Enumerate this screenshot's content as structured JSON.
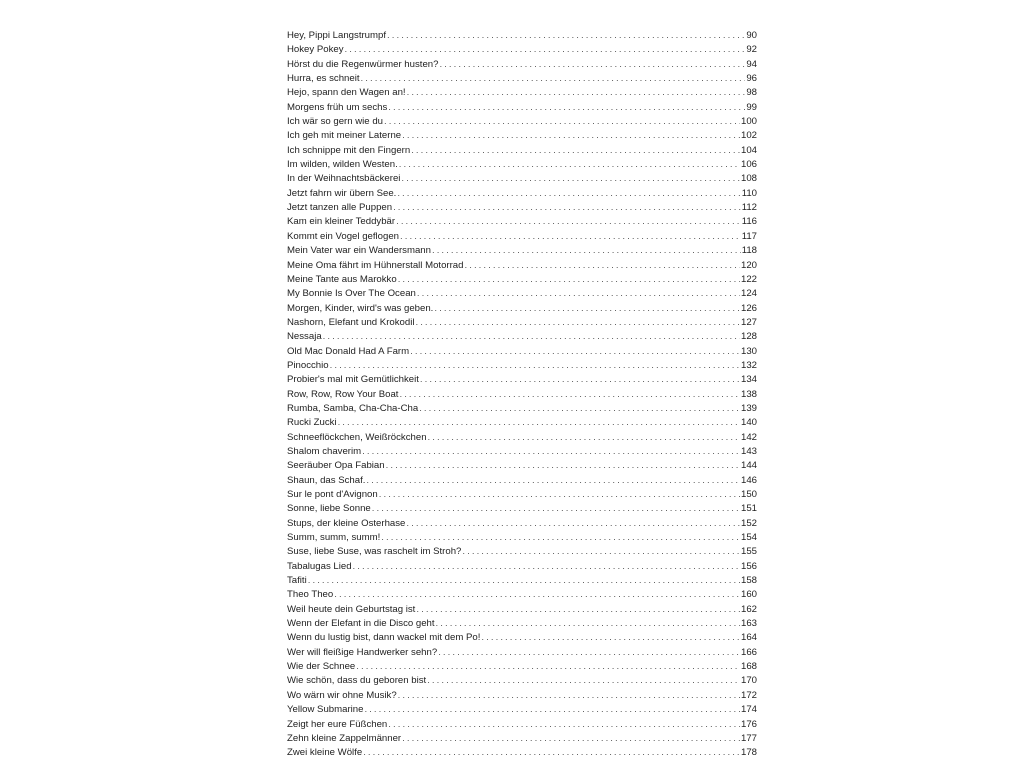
{
  "entries": [
    {
      "title": "Hey, Pippi Langstrumpf",
      "page": "90"
    },
    {
      "title": "Hokey Pokey",
      "page": "92"
    },
    {
      "title": "Hörst du die Regenwürmer husten?",
      "page": "94"
    },
    {
      "title": "Hurra, es schneit",
      "page": "96"
    },
    {
      "title": "Hejo, spann den Wagen an!",
      "page": "98"
    },
    {
      "title": "Morgens früh um sechs",
      "page": "99"
    },
    {
      "title": "Ich wär so gern wie du",
      "page": "100"
    },
    {
      "title": "Ich geh mit meiner Laterne",
      "page": "102"
    },
    {
      "title": "Ich schnippe mit den Fingern",
      "page": "104"
    },
    {
      "title": "Im wilden, wilden Westen.",
      "page": "106"
    },
    {
      "title": "In der Weihnachtsbäckerei",
      "page": "108"
    },
    {
      "title": "Jetzt fahrn wir übern See.",
      "page": "110"
    },
    {
      "title": "Jetzt tanzen alle Puppen",
      "page": "112"
    },
    {
      "title": "Kam ein kleiner Teddybär",
      "page": "116"
    },
    {
      "title": "Kommt ein Vogel geflogen",
      "page": "117"
    },
    {
      "title": "Mein Vater war ein Wandersmann",
      "page": "118"
    },
    {
      "title": "Meine Oma fährt im Hühnerstall Motorrad",
      "page": "120"
    },
    {
      "title": "Meine Tante aus Marokko",
      "page": "122"
    },
    {
      "title": "My Bonnie Is Over The Ocean",
      "page": "124"
    },
    {
      "title": "Morgen, Kinder, wird's was geben.",
      "page": "126"
    },
    {
      "title": "Nashorn, Elefant und Krokodil",
      "page": "127"
    },
    {
      "title": "Nessaja",
      "page": "128"
    },
    {
      "title": "Old Mac Donald Had A Farm",
      "page": "130"
    },
    {
      "title": "Pinocchio",
      "page": "132"
    },
    {
      "title": "Probier's mal mit Gemütlichkeit",
      "page": "134"
    },
    {
      "title": "Row, Row, Row Your Boat",
      "page": "138"
    },
    {
      "title": "Rumba, Samba, Cha-Cha-Cha",
      "page": "139"
    },
    {
      "title": "Rucki Zucki",
      "page": "140"
    },
    {
      "title": "Schneeflöckchen, Weißröckchen",
      "page": "142"
    },
    {
      "title": "Shalom chaverim",
      "page": "143"
    },
    {
      "title": "Seeräuber Opa Fabian",
      "page": "144"
    },
    {
      "title": "Shaun, das Schaf.",
      "page": "146"
    },
    {
      "title": "Sur le pont d'Avignon",
      "page": "150"
    },
    {
      "title": "Sonne, liebe Sonne",
      "page": "151"
    },
    {
      "title": "Stups, der kleine Osterhase",
      "page": "152"
    },
    {
      "title": "Summ, summ, summ!",
      "page": "154"
    },
    {
      "title": "Suse, liebe Suse, was raschelt im Stroh?",
      "page": "155"
    },
    {
      "title": "Tabalugas Lied",
      "page": "156"
    },
    {
      "title": "Tafiti",
      "page": "158"
    },
    {
      "title": "Theo Theo",
      "page": "160"
    },
    {
      "title": "Weil heute dein Geburtstag ist",
      "page": "162"
    },
    {
      "title": "Wenn der Elefant in die Disco geht",
      "page": "163"
    },
    {
      "title": "Wenn du lustig bist, dann wackel mit dem Po!",
      "page": "164"
    },
    {
      "title": "Wer will fleißige Handwerker sehn?",
      "page": "166"
    },
    {
      "title": "Wie der Schnee",
      "page": "168"
    },
    {
      "title": "Wie schön, dass du geboren bist",
      "page": "170"
    },
    {
      "title": "Wo wärn wir ohne Musik?",
      "page": "172"
    },
    {
      "title": "Yellow Submarine",
      "page": "174"
    },
    {
      "title": "Zeigt her eure Füßchen",
      "page": "176"
    },
    {
      "title": "Zehn kleine Zappelmänner",
      "page": "177"
    },
    {
      "title": "Zwei kleine Wölfe",
      "page": "178"
    }
  ]
}
